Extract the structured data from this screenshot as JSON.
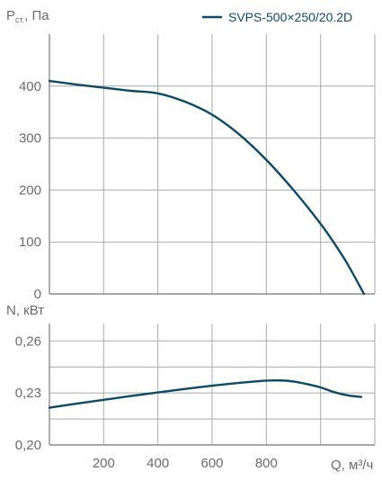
{
  "colors": {
    "series": "#0e4a66",
    "grid": "#a9a9a9",
    "text": "#6b6b6b"
  },
  "legend": {
    "name": "SVPS-500×250/20.2D",
    "placement": "top-right"
  },
  "chart_data": [
    {
      "type": "line",
      "ylabel_main": "P",
      "ylabel_sub": "ст.",
      "ylabel_unit": ", Па",
      "xlim": [
        0,
        1200
      ],
      "ylim": [
        0,
        500
      ],
      "x_gridlines": [
        200,
        400,
        600,
        800,
        1000
      ],
      "y_ticks": [
        0,
        100,
        200,
        300,
        400
      ],
      "y_tick_labels": [
        "0",
        "100",
        "200",
        "300",
        "400"
      ],
      "grid": true,
      "series": [
        {
          "name": "SVPS-500×250/20.2D",
          "x": [
            0,
            100,
            200,
            300,
            400,
            500,
            600,
            700,
            800,
            900,
            1000,
            1050,
            1100,
            1160
          ],
          "y": [
            410,
            403,
            397,
            391,
            386,
            370,
            345,
            307,
            258,
            200,
            135,
            98,
            57,
            0
          ]
        }
      ]
    },
    {
      "type": "line",
      "ylabel": "N, кВт",
      "xlabel": "Q, м³/ч",
      "xlim": [
        0,
        1200
      ],
      "ylim": [
        0.2,
        0.27
      ],
      "x_ticks": [
        200,
        400,
        600,
        800
      ],
      "x_tick_labels": [
        "200",
        "400",
        "600",
        "800"
      ],
      "x_gridlines": [
        200,
        400,
        600,
        800,
        1000
      ],
      "y_ticks": [
        0.2,
        0.23,
        0.26
      ],
      "y_tick_labels": [
        "0,20",
        "0,23",
        "0,26"
      ],
      "y_gridlines": [
        0.215,
        0.23,
        0.245,
        0.26
      ],
      "grid": true,
      "series": [
        {
          "name": "SVPS-500×250/20.2D",
          "x": [
            0,
            100,
            200,
            300,
            400,
            500,
            600,
            700,
            800,
            850,
            900,
            950,
            1000,
            1050,
            1100,
            1150
          ],
          "y": [
            0.2215,
            0.2238,
            0.226,
            0.2282,
            0.2303,
            0.2323,
            0.2342,
            0.2358,
            0.2371,
            0.2372,
            0.2366,
            0.2351,
            0.2332,
            0.2305,
            0.2286,
            0.2277
          ]
        }
      ]
    }
  ]
}
